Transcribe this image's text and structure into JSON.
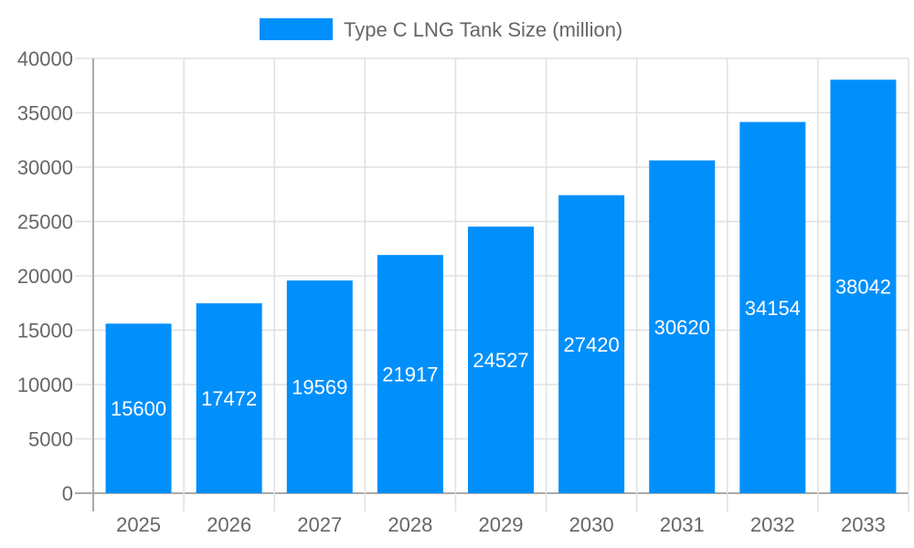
{
  "chart_data": {
    "type": "bar",
    "categories": [
      "2025",
      "2026",
      "2027",
      "2028",
      "2029",
      "2030",
      "2031",
      "2032",
      "2033"
    ],
    "series": [
      {
        "name": "Type C LNG Tank Size (million)",
        "values": [
          15600,
          17472,
          19569,
          21917,
          24527,
          27420,
          30620,
          34154,
          38042
        ],
        "color": "#008ffb"
      }
    ],
    "ylim": [
      0,
      40000
    ],
    "yticks": [
      0,
      5000,
      10000,
      15000,
      20000,
      25000,
      30000,
      35000,
      40000
    ],
    "grid": true,
    "legend": "top",
    "data_labels": true
  }
}
